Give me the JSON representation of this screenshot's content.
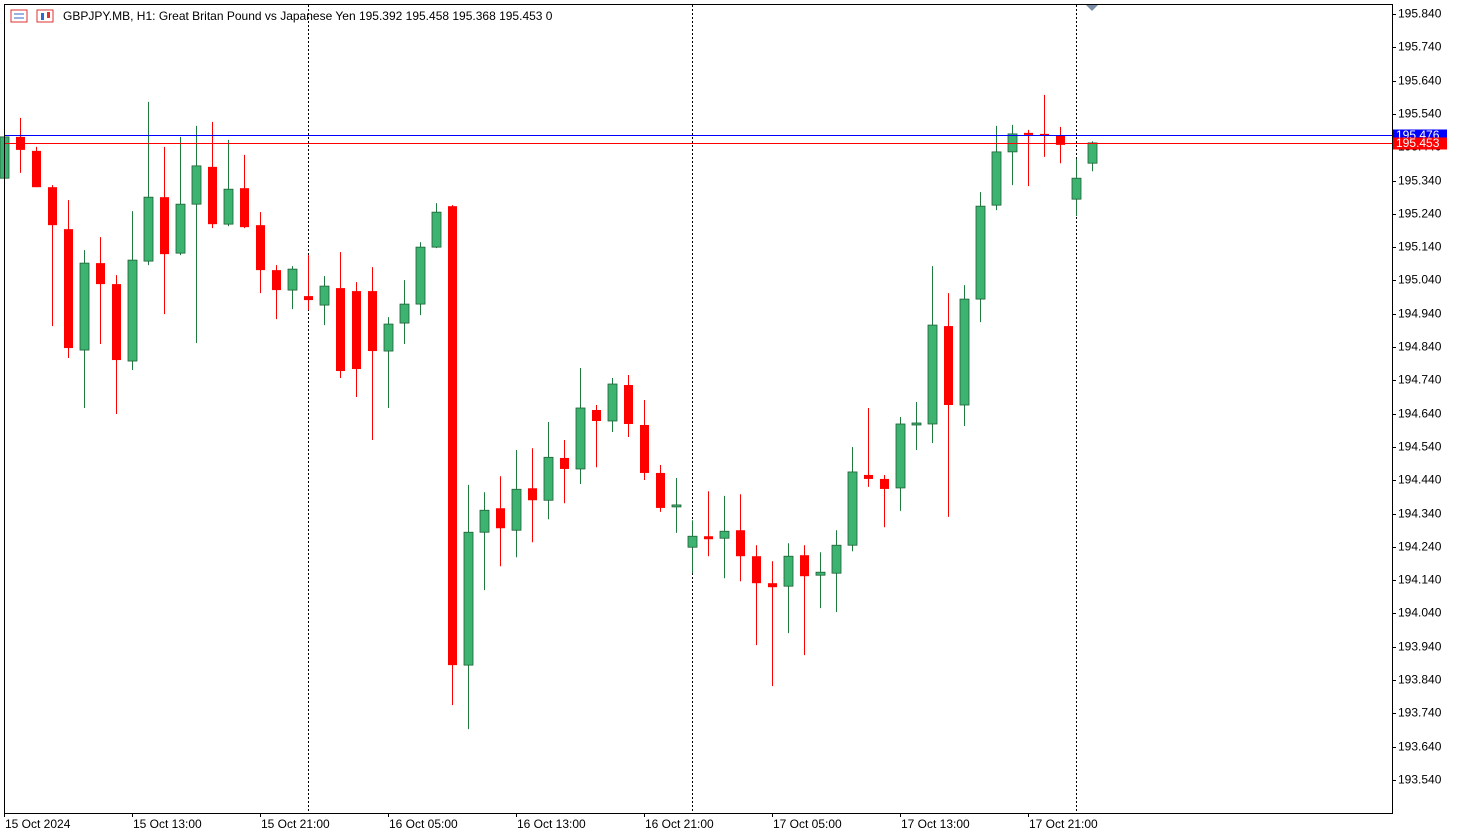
{
  "chart_data": {
    "type": "candlestick",
    "title": "GBPJPY.MB, H1:  Great Britan Pound vs Japanese Yen  195.392 195.458 195.368 195.453  0",
    "categories": [
      "15 Oct 2024",
      null,
      null,
      null,
      null,
      null,
      null,
      null,
      "15 Oct 13:00",
      null,
      null,
      null,
      null,
      null,
      null,
      null,
      "15 Oct 21:00",
      null,
      null,
      null,
      null,
      null,
      null,
      null,
      "16 Oct 05:00",
      null,
      null,
      null,
      null,
      null,
      null,
      null,
      "16 Oct 13:00",
      null,
      null,
      null,
      null,
      null,
      null,
      null,
      "16 Oct 21:00",
      null,
      null,
      null,
      null,
      null,
      null,
      null,
      "17 Oct 05:00",
      null,
      null,
      null,
      null,
      null,
      null,
      null,
      "17 Oct 13:00",
      null,
      null,
      null,
      null,
      null,
      null,
      null,
      "17 Oct 21:00",
      null,
      null,
      null,
      null
    ],
    "open": [
      195.347,
      195.471,
      195.429,
      195.32,
      195.194,
      194.831,
      195.092,
      195.029,
      194.798,
      195.098,
      195.29,
      195.122,
      195.269,
      195.381,
      195.209,
      195.317,
      195.206,
      195.071,
      195.011,
      194.993,
      194.966,
      195.017,
      195.008,
      195.008,
      194.828,
      194.912,
      194.969,
      195.14,
      195.263,
      193.885,
      194.284,
      194.356,
      194.29,
      194.416,
      194.38,
      194.507,
      194.474,
      194.651,
      194.618,
      194.726,
      194.606,
      194.462,
      194.36,
      194.239,
      194.272,
      194.266,
      194.29,
      194.212,
      194.131,
      194.122,
      194.215,
      194.155,
      194.161,
      194.245,
      194.456,
      194.444,
      194.417,
      194.606,
      194.609,
      194.903,
      194.666,
      194.984,
      195.266,
      195.426,
      195.483,
      195.48,
      195.474,
      195.284,
      195.392
    ],
    "high": [
      195.477,
      195.528,
      195.441,
      195.326,
      195.281,
      195.131,
      195.17,
      195.056,
      195.248,
      195.576,
      195.441,
      195.471,
      195.504,
      195.516,
      195.462,
      195.417,
      195.245,
      195.086,
      195.083,
      195.116,
      195.053,
      195.125,
      195.035,
      195.08,
      194.93,
      195.041,
      195.155,
      195.272,
      195.266,
      194.426,
      194.404,
      194.452,
      194.531,
      194.536,
      194.615,
      194.561,
      194.777,
      194.666,
      194.747,
      194.756,
      194.681,
      194.486,
      194.447,
      194.32,
      194.407,
      194.393,
      194.398,
      194.245,
      194.197,
      194.251,
      194.245,
      194.224,
      194.29,
      194.54,
      194.657,
      194.456,
      194.63,
      194.675,
      195.083,
      195.002,
      195.026,
      195.305,
      195.504,
      195.507,
      195.492,
      195.597,
      195.501,
      195.405,
      195.458
    ],
    "low": [
      195.347,
      195.363,
      195.32,
      194.903,
      194.807,
      194.657,
      194.849,
      194.639,
      194.771,
      195.086,
      194.939,
      195.116,
      194.852,
      195.197,
      195.203,
      195.197,
      195.002,
      194.924,
      194.954,
      194.951,
      194.906,
      194.747,
      194.69,
      194.561,
      194.657,
      194.849,
      194.936,
      195.137,
      193.765,
      193.693,
      194.11,
      194.182,
      194.209,
      194.254,
      194.323,
      194.371,
      194.429,
      194.479,
      194.585,
      194.57,
      194.441,
      194.345,
      194.282,
      194.161,
      194.212,
      194.146,
      194.137,
      193.945,
      193.822,
      193.981,
      193.915,
      194.056,
      194.044,
      194.227,
      194.42,
      194.299,
      194.348,
      194.531,
      194.552,
      194.33,
      194.603,
      194.915,
      195.251,
      195.326,
      195.323,
      195.411,
      195.392,
      195.233,
      195.368
    ],
    "close": [
      195.471,
      195.432,
      195.32,
      195.206,
      194.837,
      195.092,
      195.029,
      194.801,
      195.101,
      195.29,
      195.119,
      195.269,
      195.384,
      195.209,
      195.314,
      195.2,
      195.071,
      195.011,
      195.074,
      194.981,
      195.023,
      194.768,
      194.774,
      194.828,
      194.909,
      194.969,
      195.14,
      195.245,
      193.885,
      194.284,
      194.35,
      194.296,
      194.413,
      194.38,
      194.509,
      194.474,
      194.657,
      194.618,
      194.729,
      194.609,
      194.462,
      194.357,
      194.366,
      194.272,
      194.263,
      194.287,
      194.212,
      194.131,
      194.119,
      194.212,
      194.152,
      194.164,
      194.245,
      194.465,
      194.444,
      194.414,
      194.609,
      194.612,
      194.906,
      194.666,
      194.984,
      195.263,
      195.426,
      195.48,
      195.477,
      195.474,
      195.447,
      195.347,
      195.453
    ],
    "up_color": "#3cb371",
    "down_color": "#ff0000",
    "price_lines": [
      {
        "value": 195.476,
        "color": "#0000ff"
      },
      {
        "value": 195.453,
        "color": "#ff0000"
      }
    ],
    "ylim": [
      193.441,
      195.867
    ],
    "yticks": [
      {
        "value": 195.84,
        "label": "195.840"
      },
      {
        "value": 195.74,
        "label": "195.740"
      },
      {
        "value": 195.64,
        "label": "195.640"
      },
      {
        "value": 195.54,
        "label": "195.540"
      },
      {
        "value": 195.44,
        "label": "195.440"
      },
      {
        "value": 195.34,
        "label": "195.340"
      },
      {
        "value": 195.24,
        "label": "195.240"
      },
      {
        "value": 195.14,
        "label": "195.140"
      },
      {
        "value": 195.04,
        "label": "195.040"
      },
      {
        "value": 194.94,
        "label": "194.940"
      },
      {
        "value": 194.84,
        "label": "194.840"
      },
      {
        "value": 194.74,
        "label": "194.740"
      },
      {
        "value": 194.64,
        "label": "194.640"
      },
      {
        "value": 194.54,
        "label": "194.540"
      },
      {
        "value": 194.44,
        "label": "194.440"
      },
      {
        "value": 194.34,
        "label": "194.340"
      },
      {
        "value": 194.24,
        "label": "194.240"
      },
      {
        "value": 194.14,
        "label": "194.140"
      },
      {
        "value": 194.04,
        "label": "194.040"
      },
      {
        "value": 193.94,
        "label": "193.940"
      },
      {
        "value": 193.84,
        "label": "193.840"
      },
      {
        "value": 193.74,
        "label": "193.740"
      },
      {
        "value": 193.64,
        "label": "193.640"
      },
      {
        "value": 193.54,
        "label": "193.540"
      }
    ]
  }
}
